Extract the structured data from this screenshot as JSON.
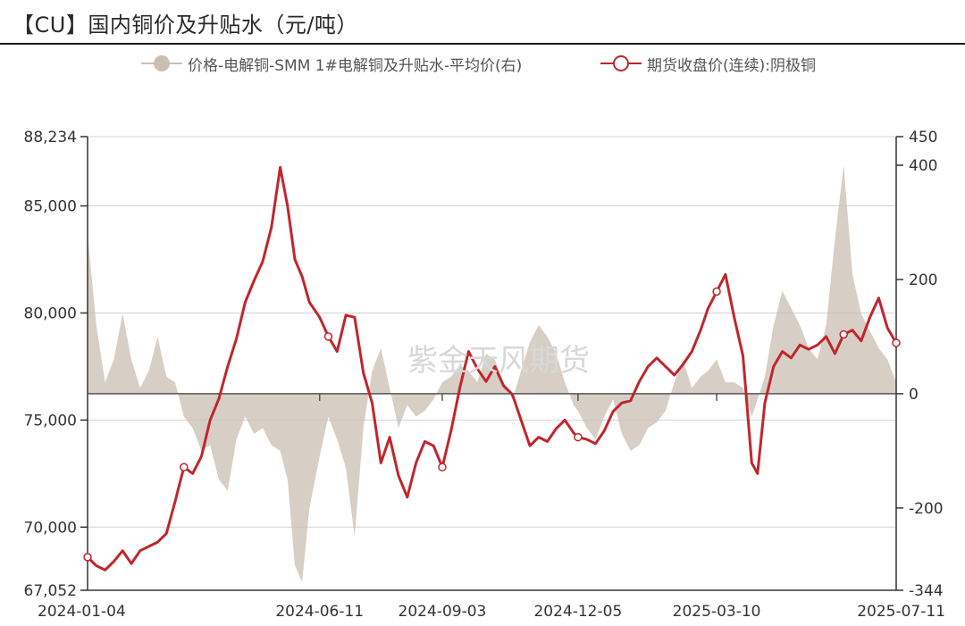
{
  "title": "【CU】国内铜价及升贴水（元/吨）",
  "watermark": "紫金天风期货",
  "chart_data": {
    "type": "line",
    "legend": [
      {
        "name": "价格-电解铜-SMM 1#电解铜及升贴水-平均价(右)",
        "style": "area",
        "color": "#c9bfb2"
      },
      {
        "name": "期货收盘价(连续):阴极铜",
        "style": "line-marker",
        "color": "#c0262d"
      }
    ],
    "x_tick_labels": [
      "2024-01-04",
      "2024-06-11",
      "2024-09-03",
      "2024-12-05",
      "2025-03-10",
      "2025-07-11"
    ],
    "y_left": {
      "ticks": [
        67052,
        70000,
        75000,
        80000,
        85000,
        88234
      ],
      "ylim": [
        67052,
        88234
      ]
    },
    "y_right": {
      "ticks": [
        -344,
        -200,
        0,
        200,
        400,
        450
      ],
      "ylim": [
        -344,
        450
      ]
    },
    "x_range": [
      "2024-01-04",
      "2025-07-11"
    ],
    "series": [
      {
        "name": "期货收盘价(连续):阴极铜",
        "axis": "left",
        "color": "#c0262d",
        "x": [
          "2024-01-04",
          "2024-01-10",
          "2024-01-16",
          "2024-01-22",
          "2024-01-28",
          "2024-02-03",
          "2024-02-09",
          "2024-02-15",
          "2024-02-21",
          "2024-02-27",
          "2024-03-04",
          "2024-03-10",
          "2024-03-16",
          "2024-03-22",
          "2024-03-28",
          "2024-04-03",
          "2024-04-09",
          "2024-04-15",
          "2024-04-21",
          "2024-04-27",
          "2024-05-03",
          "2024-05-09",
          "2024-05-15",
          "2024-05-20",
          "2024-05-25",
          "2024-05-30",
          "2024-06-04",
          "2024-06-11",
          "2024-06-17",
          "2024-06-23",
          "2024-06-29",
          "2024-07-05",
          "2024-07-11",
          "2024-07-17",
          "2024-07-23",
          "2024-07-29",
          "2024-08-04",
          "2024-08-10",
          "2024-08-16",
          "2024-08-22",
          "2024-08-28",
          "2024-09-03",
          "2024-09-09",
          "2024-09-15",
          "2024-09-21",
          "2024-09-27",
          "2024-10-03",
          "2024-10-09",
          "2024-10-15",
          "2024-10-21",
          "2024-10-27",
          "2024-11-02",
          "2024-11-08",
          "2024-11-14",
          "2024-11-20",
          "2024-11-26",
          "2024-12-02",
          "2024-12-05",
          "2024-12-11",
          "2024-12-17",
          "2024-12-23",
          "2024-12-29",
          "2025-01-04",
          "2025-01-10",
          "2025-01-16",
          "2025-01-22",
          "2025-01-28",
          "2025-02-03",
          "2025-02-09",
          "2025-02-15",
          "2025-02-21",
          "2025-02-27",
          "2025-03-04",
          "2025-03-10",
          "2025-03-16",
          "2025-03-22",
          "2025-03-28",
          "2025-04-03",
          "2025-04-07",
          "2025-04-12",
          "2025-04-18",
          "2025-04-24",
          "2025-04-30",
          "2025-05-06",
          "2025-05-12",
          "2025-05-18",
          "2025-05-24",
          "2025-05-30",
          "2025-06-05",
          "2025-06-11",
          "2025-06-17",
          "2025-06-23",
          "2025-06-29",
          "2025-07-05",
          "2025-07-11"
        ],
        "values": [
          68600,
          68200,
          68000,
          68400,
          68900,
          68300,
          68900,
          69100,
          69300,
          69700,
          71200,
          72800,
          72500,
          73300,
          75000,
          76000,
          77500,
          78800,
          80500,
          81500,
          82400,
          84000,
          86800,
          85000,
          82500,
          81700,
          80500,
          79800,
          78900,
          78200,
          79900,
          79800,
          77200,
          75800,
          73000,
          74200,
          72400,
          71400,
          73000,
          74000,
          73800,
          72800,
          74500,
          76500,
          78200,
          77400,
          76800,
          77500,
          76600,
          76200,
          75000,
          73800,
          74200,
          74000,
          74600,
          75000,
          74400,
          74200,
          74100,
          73900,
          74500,
          75400,
          75800,
          75900,
          76800,
          77500,
          77900,
          77500,
          77100,
          77600,
          78200,
          79200,
          80200,
          81000,
          81800,
          79800,
          78000,
          73000,
          72500,
          75800,
          77500,
          78200,
          77900,
          78500,
          78300,
          78500,
          78900,
          78100,
          79000,
          79200,
          78700,
          79800,
          80700,
          79300,
          78600
        ]
      },
      {
        "name": "价格-电解铜-SMM 1#电解铜及升贴水-平均价(右)",
        "axis": "right",
        "color": "#c9bfb2",
        "x": [
          "2024-01-04",
          "2024-01-10",
          "2024-01-16",
          "2024-01-22",
          "2024-01-28",
          "2024-02-03",
          "2024-02-09",
          "2024-02-15",
          "2024-02-21",
          "2024-02-27",
          "2024-03-04",
          "2024-03-10",
          "2024-03-16",
          "2024-03-22",
          "2024-03-28",
          "2024-04-03",
          "2024-04-09",
          "2024-04-15",
          "2024-04-21",
          "2024-04-27",
          "2024-05-03",
          "2024-05-09",
          "2024-05-15",
          "2024-05-20",
          "2024-05-25",
          "2024-05-30",
          "2024-06-04",
          "2024-06-11",
          "2024-06-17",
          "2024-06-23",
          "2024-06-29",
          "2024-07-05",
          "2024-07-11",
          "2024-07-17",
          "2024-07-23",
          "2024-07-29",
          "2024-08-04",
          "2024-08-10",
          "2024-08-16",
          "2024-08-22",
          "2024-08-28",
          "2024-09-03",
          "2024-09-09",
          "2024-09-15",
          "2024-09-21",
          "2024-09-27",
          "2024-10-03",
          "2024-10-09",
          "2024-10-15",
          "2024-10-21",
          "2024-10-27",
          "2024-11-02",
          "2024-11-08",
          "2024-11-14",
          "2024-11-20",
          "2024-11-26",
          "2024-12-02",
          "2024-12-05",
          "2024-12-11",
          "2024-12-17",
          "2024-12-23",
          "2024-12-29",
          "2025-01-04",
          "2025-01-10",
          "2025-01-16",
          "2025-01-22",
          "2025-01-28",
          "2025-02-03",
          "2025-02-09",
          "2025-02-15",
          "2025-02-21",
          "2025-02-27",
          "2025-03-04",
          "2025-03-10",
          "2025-03-16",
          "2025-03-22",
          "2025-03-28",
          "2025-04-03",
          "2025-04-07",
          "2025-04-12",
          "2025-04-18",
          "2025-04-24",
          "2025-04-30",
          "2025-05-06",
          "2025-05-12",
          "2025-05-18",
          "2025-05-24",
          "2025-05-30",
          "2025-06-05",
          "2025-06-11",
          "2025-06-17",
          "2025-06-23",
          "2025-06-29",
          "2025-07-05",
          "2025-07-11"
        ],
        "values": [
          280,
          120,
          20,
          60,
          140,
          60,
          10,
          40,
          100,
          30,
          20,
          -40,
          -60,
          -100,
          -90,
          -150,
          -170,
          -80,
          -40,
          -70,
          -60,
          -90,
          -100,
          -150,
          -300,
          -330,
          -200,
          -110,
          -40,
          -80,
          -130,
          -250,
          -60,
          40,
          80,
          10,
          -60,
          -20,
          -40,
          -30,
          -10,
          20,
          30,
          50,
          40,
          20,
          70,
          60,
          20,
          -10,
          40,
          90,
          120,
          100,
          70,
          20,
          -20,
          -30,
          -60,
          -80,
          -40,
          -10,
          -70,
          -100,
          -90,
          -60,
          -50,
          -30,
          20,
          60,
          10,
          30,
          40,
          60,
          20,
          20,
          10,
          -40,
          -10,
          30,
          120,
          180,
          150,
          120,
          80,
          60,
          120,
          270,
          400,
          210,
          140,
          110,
          80,
          60,
          20
        ]
      }
    ],
    "marker_dates": [
      "2024-01-04",
      "2024-03-10",
      "2024-06-17",
      "2024-09-03",
      "2024-12-05",
      "2025-03-10",
      "2025-06-05",
      "2025-07-11"
    ]
  }
}
